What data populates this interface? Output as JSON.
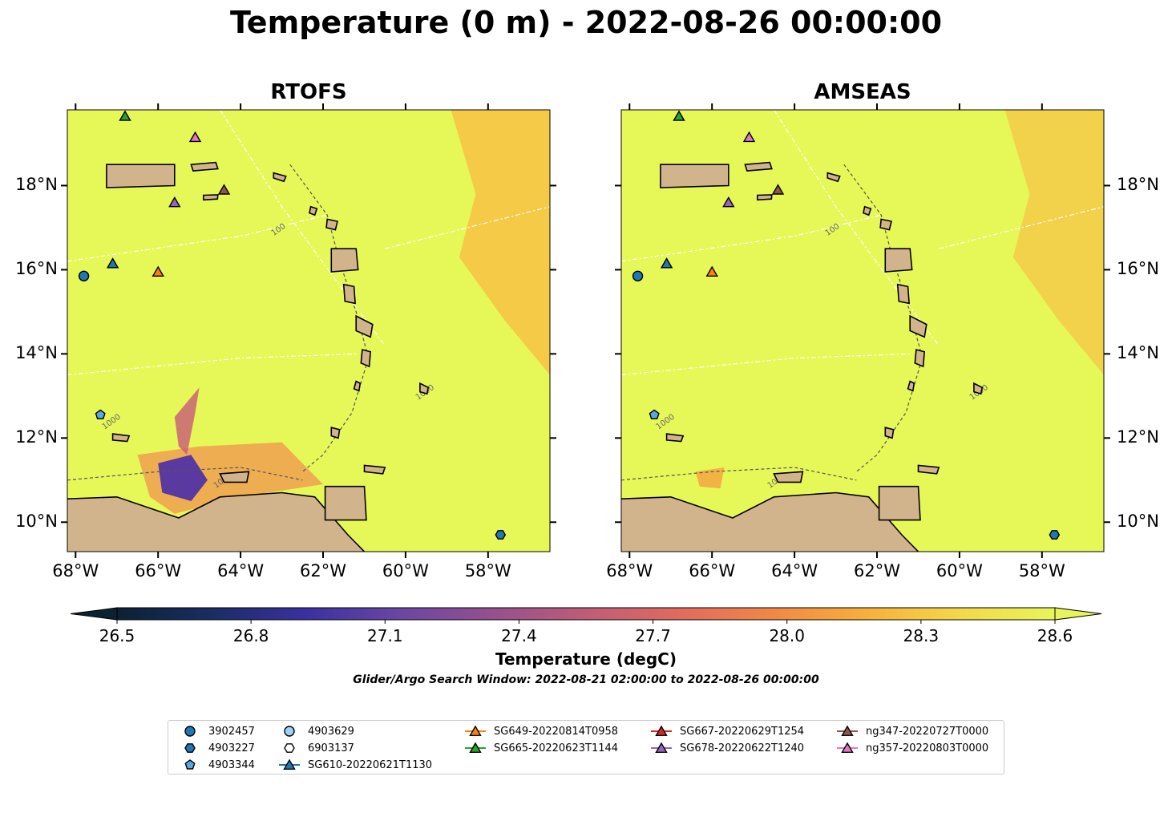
{
  "title": "Temperature (0 m) - 2022-08-26 00:00:00",
  "panels": [
    {
      "title": "RTOFS"
    },
    {
      "title": "AMSEAS"
    }
  ],
  "axes": {
    "lon_labels": [
      "68°W",
      "66°W",
      "64°W",
      "62°W",
      "60°W",
      "58°W"
    ],
    "lat_labels": [
      "18°N",
      "16°N",
      "14°N",
      "12°N",
      "10°N"
    ],
    "lon_range": [
      -68.2,
      -56.5
    ],
    "lat_range": [
      9.3,
      19.8
    ]
  },
  "colorbar": {
    "label": "Temperature (degC)",
    "ticks": [
      "26.5",
      "26.8",
      "27.1",
      "27.4",
      "27.7",
      "28.0",
      "28.3",
      "28.6"
    ],
    "range": [
      26.5,
      28.6
    ],
    "extend": "both",
    "colormap_stops": [
      "#0b2233",
      "#1a2d63",
      "#3a30a0",
      "#6a46a2",
      "#94508e",
      "#bf5c78",
      "#e06b5e",
      "#f08845",
      "#f8b03c",
      "#f2d84a",
      "#e8f55a"
    ]
  },
  "bathymetry_labels": [
    "100",
    "1000"
  ],
  "search_window": "Glider/Argo Search Window: 2022-08-21 02:00:00 to 2022-08-26 00:00:00",
  "colors": {
    "ocean": "#e6f858",
    "land": "#d2b48c",
    "warm_patch": "#f7c244",
    "cool_patch": "#5a3aa0"
  },
  "legend": [
    {
      "label": "3902457",
      "marker": "circle",
      "color": "#1f77b4",
      "line": false
    },
    {
      "label": "4903227",
      "marker": "hexagon",
      "color": "#1f77b4",
      "line": false
    },
    {
      "label": "4903344",
      "marker": "pentagon",
      "color": "#5aa8e0",
      "line": false
    },
    {
      "label": "4903629",
      "marker": "circle",
      "color": "#9fd0f5",
      "line": false
    },
    {
      "label": "6903137",
      "marker": "hexagon",
      "color": "#ffffff",
      "line": false
    },
    {
      "label": "SG610-20220621T1130",
      "marker": "triangle",
      "color": "#1f77b4",
      "line": true
    },
    {
      "label": "SG649-20220814T0958",
      "marker": "triangle",
      "color": "#ff7f0e",
      "line": true
    },
    {
      "label": "SG665-20220623T1144",
      "marker": "triangle",
      "color": "#2ca02c",
      "line": true
    },
    {
      "label": "SG667-20220629T1254",
      "marker": "triangle",
      "color": "#d62728",
      "line": true
    },
    {
      "label": "SG678-20220622T1240",
      "marker": "triangle",
      "color": "#9467bd",
      "line": true
    },
    {
      "label": "ng347-20220727T0000",
      "marker": "triangle",
      "color": "#8c564b",
      "line": true
    },
    {
      "label": "ng357-20220803T0000",
      "marker": "triangle",
      "color": "#e377c2",
      "line": true
    }
  ],
  "platforms": [
    {
      "name": "3902457",
      "lon": -67.8,
      "lat": 15.85,
      "marker": "circle",
      "color": "#1f77b4"
    },
    {
      "name": "4903227",
      "lon": -57.7,
      "lat": 9.7,
      "marker": "hexagon",
      "color": "#1f77b4"
    },
    {
      "name": "4903344",
      "lon": -67.4,
      "lat": 12.55,
      "marker": "pentagon",
      "color": "#5aa8e0"
    },
    {
      "name": "SG610-20220621T1130",
      "lon": -67.1,
      "lat": 16.15,
      "marker": "triangle",
      "color": "#1f77b4"
    },
    {
      "name": "SG649-20220814T0958",
      "lon": -66.0,
      "lat": 15.95,
      "marker": "triangle",
      "color": "#ff7f0e"
    },
    {
      "name": "SG665-20220623T1144",
      "lon": -66.8,
      "lat": 19.65,
      "marker": "triangle",
      "color": "#2ca02c"
    },
    {
      "name": "SG678-20220622T1240",
      "lon": -65.6,
      "lat": 17.6,
      "marker": "triangle",
      "color": "#9467bd"
    },
    {
      "name": "ng347-20220727T0000",
      "lon": -64.4,
      "lat": 17.9,
      "marker": "triangle",
      "color": "#8c564b"
    },
    {
      "name": "ng357-20220803T0000",
      "lon": -65.1,
      "lat": 19.15,
      "marker": "triangle",
      "color": "#e377c2"
    }
  ]
}
